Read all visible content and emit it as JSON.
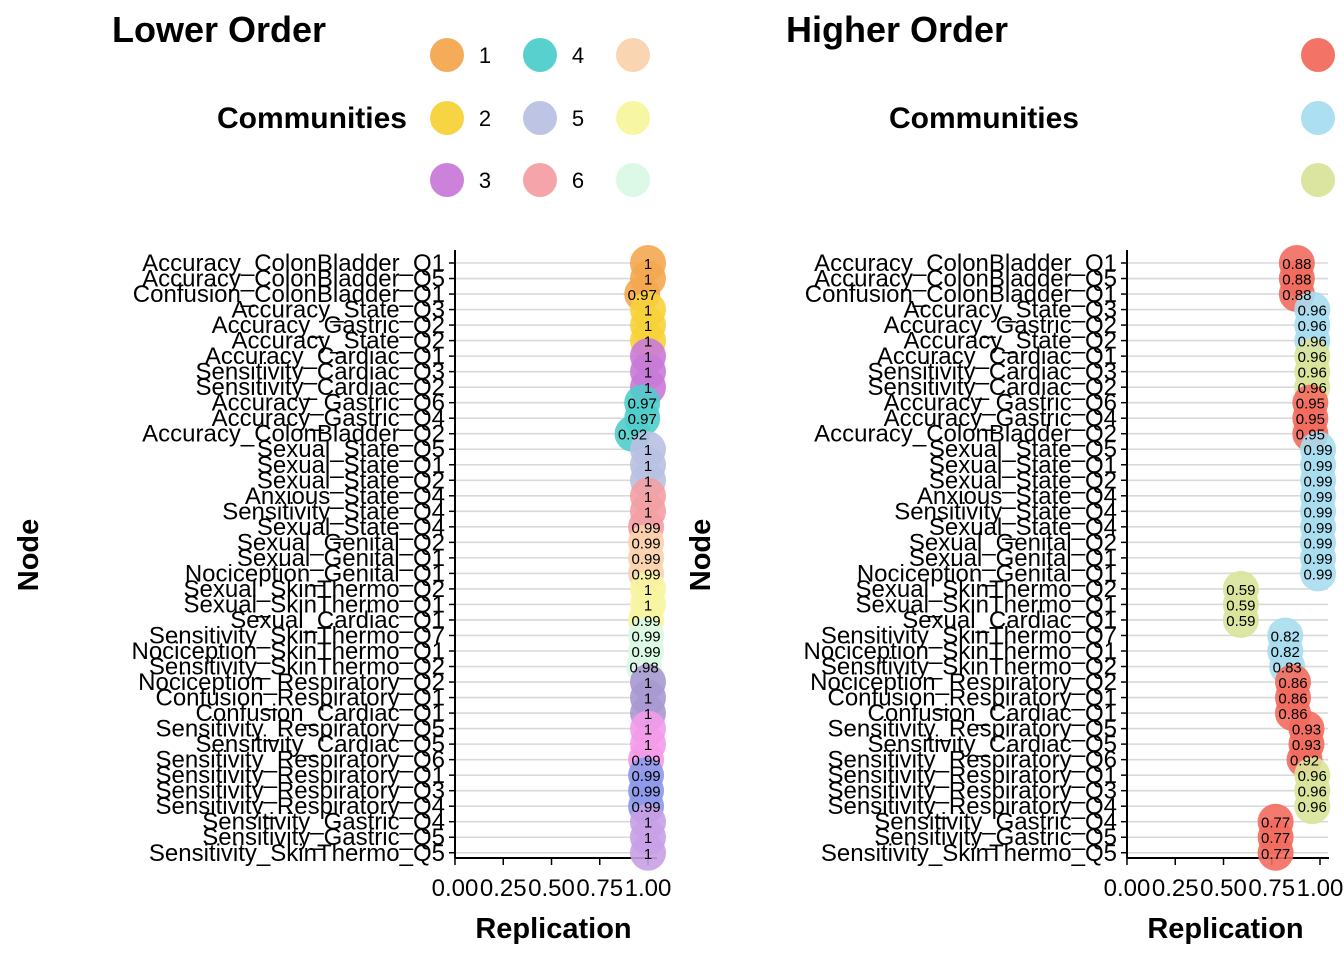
{
  "chart_data": [
    {
      "type": "scatter",
      "title": "Lower Order",
      "xlabel": "Replication",
      "ylabel": "Node",
      "xlim": [
        0,
        1
      ],
      "xticks": [
        "0.00",
        "0.25",
        "0.50",
        "0.75",
        "1.00"
      ],
      "grid": "horizontal",
      "legend": {
        "title": "Communities",
        "placement": "top-right",
        "items": [
          {
            "label": "1",
            "color": "#F4A850"
          },
          {
            "label": "2",
            "color": "#F7D23A"
          },
          {
            "label": "3",
            "color": "#C97AD8"
          },
          {
            "label": "4",
            "color": "#4FCDCB"
          },
          {
            "label": "5",
            "color": "#B9C1E3"
          },
          {
            "label": "6",
            "color": "#F4A0A5"
          },
          {
            "label": "",
            "color": "#F9D3AE"
          },
          {
            "label": "",
            "color": "#F7F59E"
          },
          {
            "label": "",
            "color": "#D9F9E5"
          }
        ]
      },
      "points": [
        {
          "node": "Accuracy_ColonBladder_Q1",
          "value": 1.0,
          "label": "1",
          "color": "#F4A850"
        },
        {
          "node": "Accuracy_ColonBladder_Q5",
          "value": 1.0,
          "label": "1",
          "color": "#F4A850"
        },
        {
          "node": "Confusion_ColonBladder_Q1",
          "value": 0.97,
          "label": "0.97",
          "color": "#F4A850"
        },
        {
          "node": "Accuracy_State_Q3",
          "value": 1.0,
          "label": "1",
          "color": "#F7D23A"
        },
        {
          "node": "Accuracy_Gastric_Q2",
          "value": 1.0,
          "label": "1",
          "color": "#F7D23A"
        },
        {
          "node": "Accuracy_State_Q2",
          "value": 1.0,
          "label": "1",
          "color": "#F7D23A"
        },
        {
          "node": "Accuracy_Cardiac_Q1",
          "value": 1.0,
          "label": "1",
          "color": "#C97AD8"
        },
        {
          "node": "Sensitivity_Cardiac_Q3",
          "value": 1.0,
          "label": "1",
          "color": "#C97AD8"
        },
        {
          "node": "Sensitivity_Cardiac_Q2",
          "value": 1.0,
          "label": "1",
          "color": "#C97AD8"
        },
        {
          "node": "Accuracy_Gastric_Q6",
          "value": 0.97,
          "label": "0.97",
          "color": "#4FCDCB"
        },
        {
          "node": "Accuracy_Gastric_Q4",
          "value": 0.97,
          "label": "0.97",
          "color": "#4FCDCB"
        },
        {
          "node": "Accuracy_ColonBladder_Q2",
          "value": 0.92,
          "label": "0.92",
          "color": "#4FCDCB"
        },
        {
          "node": "Sexual_State_Q5",
          "value": 1.0,
          "label": "1",
          "color": "#B9C1E3"
        },
        {
          "node": "Sexual_State_Q1",
          "value": 1.0,
          "label": "1",
          "color": "#B9C1E3"
        },
        {
          "node": "Sexual_State_Q2",
          "value": 1.0,
          "label": "1",
          "color": "#B9C1E3"
        },
        {
          "node": "Anxious_State_Q4",
          "value": 1.0,
          "label": "1",
          "color": "#F4A0A5"
        },
        {
          "node": "Sensitivity_State_Q4",
          "value": 1.0,
          "label": "1",
          "color": "#F4A0A5"
        },
        {
          "node": "Sexual_State_Q4",
          "value": 0.99,
          "label": "0.99",
          "color": "#F4A0A5"
        },
        {
          "node": "Sexual_Genital_Q2",
          "value": 0.99,
          "label": "0.99",
          "color": "#F9D3AE"
        },
        {
          "node": "Sexual_Genital_Q1",
          "value": 0.99,
          "label": "0.99",
          "color": "#F9D3AE"
        },
        {
          "node": "Nociception_Genital_Q1",
          "value": 0.99,
          "label": "0.99",
          "color": "#F9D3AE"
        },
        {
          "node": "Sexual_SkinThermo_Q2",
          "value": 1.0,
          "label": "1",
          "color": "#F7F59E"
        },
        {
          "node": "Sexual_SkinThermo_Q1",
          "value": 1.0,
          "label": "1",
          "color": "#F7F59E"
        },
        {
          "node": "Sexual_Cardiac_Q1",
          "value": 0.99,
          "label": "0.99",
          "color": "#F7F59E"
        },
        {
          "node": "Sensitivity_SkinThermo_Q7",
          "value": 0.99,
          "label": "0.99",
          "color": "#D9F9E5"
        },
        {
          "node": "Nociception_SkinThermo_Q1",
          "value": 0.99,
          "label": "0.99",
          "color": "#D9F9E5"
        },
        {
          "node": "Sensitivity_SkinThermo_Q2",
          "value": 0.98,
          "label": "0.98",
          "color": "#D9F9E5"
        },
        {
          "node": "Nociception_Respiratory_Q2",
          "value": 1.0,
          "label": "1",
          "color": "#A99AD0"
        },
        {
          "node": "Confusion_Respiratory_Q1",
          "value": 1.0,
          "label": "1",
          "color": "#A99AD0"
        },
        {
          "node": "Confusion_Cardiac_Q1",
          "value": 1.0,
          "label": "1",
          "color": "#A99AD0"
        },
        {
          "node": "Sensitivity_Respiratory_Q5",
          "value": 1.0,
          "label": "1",
          "color": "#F49BEA"
        },
        {
          "node": "Sensitivity_Cardiac_Q5",
          "value": 1.0,
          "label": "1",
          "color": "#F49BEA"
        },
        {
          "node": "Sensitivity_Respiratory_Q6",
          "value": 0.99,
          "label": "0.99",
          "color": "#F49BEA"
        },
        {
          "node": "Sensitivity_Respiratory_Q1",
          "value": 0.99,
          "label": "0.99",
          "color": "#8E99EA"
        },
        {
          "node": "Sensitivity_Respiratory_Q3",
          "value": 0.99,
          "label": "0.99",
          "color": "#8E99EA"
        },
        {
          "node": "Sensitivity_Respiratory_Q4",
          "value": 0.99,
          "label": "0.99",
          "color": "#8E99EA"
        },
        {
          "node": "Sensitivity_Gastric_Q4",
          "value": 1.0,
          "label": "1",
          "color": "#C8A0E6"
        },
        {
          "node": "Sensitivity_Gastric_Q5",
          "value": 1.0,
          "label": "1",
          "color": "#C8A0E6"
        },
        {
          "node": "Sensitivity_SkinThermo_Q5",
          "value": 1.0,
          "label": "1",
          "color": "#C8A0E6"
        }
      ]
    },
    {
      "type": "scatter",
      "title": "Higher Order",
      "xlabel": "Replication",
      "ylabel": "Node",
      "xlim": [
        0,
        1
      ],
      "xticks": [
        "0.00",
        "0.25",
        "0.50",
        "0.75",
        "1.00"
      ],
      "grid": "horizontal",
      "legend": {
        "title": "Communities",
        "placement": "top-right",
        "items": [
          {
            "label": "",
            "color": "#F26B5E"
          },
          {
            "label": "",
            "color": "#A8DDF0"
          },
          {
            "label": "",
            "color": "#D9E49A"
          }
        ]
      },
      "points": [
        {
          "node": "Accuracy_ColonBladder_Q1",
          "value": 0.88,
          "label": "0.88",
          "color": "#F26B5E"
        },
        {
          "node": "Accuracy_ColonBladder_Q5",
          "value": 0.88,
          "label": "0.88",
          "color": "#F26B5E"
        },
        {
          "node": "Confusion_ColonBladder_Q1",
          "value": 0.88,
          "label": "0.88",
          "color": "#F26B5E"
        },
        {
          "node": "Accuracy_State_Q3",
          "value": 0.96,
          "label": "0.96",
          "color": "#A8DDF0"
        },
        {
          "node": "Accuracy_Gastric_Q2",
          "value": 0.96,
          "label": "0.96",
          "color": "#A8DDF0"
        },
        {
          "node": "Accuracy_State_Q2",
          "value": 0.96,
          "label": "0.96",
          "color": "#A8DDF0"
        },
        {
          "node": "Accuracy_Cardiac_Q1",
          "value": 0.96,
          "label": "0.96",
          "color": "#D9E49A"
        },
        {
          "node": "Sensitivity_Cardiac_Q3",
          "value": 0.96,
          "label": "0.96",
          "color": "#D9E49A"
        },
        {
          "node": "Sensitivity_Cardiac_Q2",
          "value": 0.96,
          "label": "0.96",
          "color": "#D9E49A"
        },
        {
          "node": "Accuracy_Gastric_Q6",
          "value": 0.95,
          "label": "0.95",
          "color": "#F26B5E"
        },
        {
          "node": "Accuracy_Gastric_Q4",
          "value": 0.95,
          "label": "0.95",
          "color": "#F26B5E"
        },
        {
          "node": "Accuracy_ColonBladder_Q2",
          "value": 0.95,
          "label": "0.95",
          "color": "#F26B5E"
        },
        {
          "node": "Sexual_State_Q5",
          "value": 0.99,
          "label": "0.99",
          "color": "#A8DDF0"
        },
        {
          "node": "Sexual_State_Q1",
          "value": 0.99,
          "label": "0.99",
          "color": "#A8DDF0"
        },
        {
          "node": "Sexual_State_Q2",
          "value": 0.99,
          "label": "0.99",
          "color": "#A8DDF0"
        },
        {
          "node": "Anxious_State_Q4",
          "value": 0.99,
          "label": "0.99",
          "color": "#A8DDF0"
        },
        {
          "node": "Sensitivity_State_Q4",
          "value": 0.99,
          "label": "0.99",
          "color": "#A8DDF0"
        },
        {
          "node": "Sexual_State_Q4",
          "value": 0.99,
          "label": "0.99",
          "color": "#A8DDF0"
        },
        {
          "node": "Sexual_Genital_Q2",
          "value": 0.99,
          "label": "0.99",
          "color": "#A8DDF0"
        },
        {
          "node": "Sexual_Genital_Q1",
          "value": 0.99,
          "label": "0.99",
          "color": "#A8DDF0"
        },
        {
          "node": "Nociception_Genital_Q1",
          "value": 0.99,
          "label": "0.99",
          "color": "#A8DDF0"
        },
        {
          "node": "Sexual_SkinThermo_Q2",
          "value": 0.59,
          "label": "0.59",
          "color": "#D9E49A"
        },
        {
          "node": "Sexual_SkinThermo_Q1",
          "value": 0.59,
          "label": "0.59",
          "color": "#D9E49A"
        },
        {
          "node": "Sexual_Cardiac_Q1",
          "value": 0.59,
          "label": "0.59",
          "color": "#D9E49A"
        },
        {
          "node": "Sensitivity_SkinThermo_Q7",
          "value": 0.82,
          "label": "0.82",
          "color": "#A8DDF0"
        },
        {
          "node": "Nociception_SkinThermo_Q1",
          "value": 0.82,
          "label": "0.82",
          "color": "#A8DDF0"
        },
        {
          "node": "Sensitivity_SkinThermo_Q2",
          "value": 0.83,
          "label": "0.83",
          "color": "#A8DDF0"
        },
        {
          "node": "Nociception_Respiratory_Q2",
          "value": 0.86,
          "label": "0.86",
          "color": "#F26B5E"
        },
        {
          "node": "Confusion_Respiratory_Q1",
          "value": 0.86,
          "label": "0.86",
          "color": "#F26B5E"
        },
        {
          "node": "Confusion_Cardiac_Q1",
          "value": 0.86,
          "label": "0.86",
          "color": "#F26B5E"
        },
        {
          "node": "Sensitivity_Respiratory_Q5",
          "value": 0.93,
          "label": "0.93",
          "color": "#F26B5E"
        },
        {
          "node": "Sensitivity_Cardiac_Q5",
          "value": 0.93,
          "label": "0.93",
          "color": "#F26B5E"
        },
        {
          "node": "Sensitivity_Respiratory_Q6",
          "value": 0.92,
          "label": "0.92",
          "color": "#F26B5E"
        },
        {
          "node": "Sensitivity_Respiratory_Q1",
          "value": 0.96,
          "label": "0.96",
          "color": "#D9E49A"
        },
        {
          "node": "Sensitivity_Respiratory_Q3",
          "value": 0.96,
          "label": "0.96",
          "color": "#D9E49A"
        },
        {
          "node": "Sensitivity_Respiratory_Q4",
          "value": 0.96,
          "label": "0.96",
          "color": "#D9E49A"
        },
        {
          "node": "Sensitivity_Gastric_Q4",
          "value": 0.77,
          "label": "0.77",
          "color": "#F26B5E"
        },
        {
          "node": "Sensitivity_Gastric_Q5",
          "value": 0.77,
          "label": "0.77",
          "color": "#F26B5E"
        },
        {
          "node": "Sensitivity_SkinThermo_Q5",
          "value": 0.77,
          "label": "0.77",
          "color": "#F26B5E"
        }
      ]
    }
  ]
}
